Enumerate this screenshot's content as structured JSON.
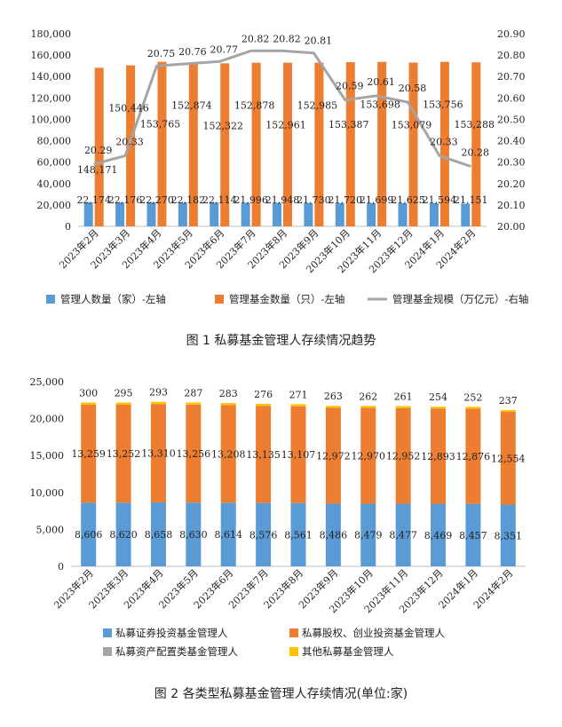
{
  "figure1": {
    "caption": "图 1 私募基金管理人存续情况趋势",
    "chart_data": {
      "type": "bar",
      "categories": [
        "2023年2月",
        "2023年3月",
        "2023年4月",
        "2023年5月",
        "2023年6月",
        "2023年7月",
        "2023年8月",
        "2023年9月",
        "2023年10月",
        "2023年11月",
        "2023年12月",
        "2024年1月",
        "2024年2月"
      ],
      "series": [
        {
          "name": "管理人数量（家）-左轴",
          "type": "bar",
          "axis": "left",
          "color": "#5B9BD5",
          "values": [
            22174,
            22176,
            22270,
            22182,
            22114,
            21996,
            21948,
            21730,
            21720,
            21699,
            21625,
            21594,
            21151
          ],
          "labels": [
            "22,174",
            "22,176",
            "22,270",
            "22,182",
            "22,114",
            "21,996",
            "21,948",
            "21,730",
            "21,720",
            "21,699",
            "21,625",
            "21,594",
            "21,151"
          ]
        },
        {
          "name": "管理基金数量（只）-左轴",
          "type": "bar",
          "axis": "left",
          "color": "#ED7D31",
          "values": [
            148171,
            150446,
            153765,
            152874,
            152322,
            152878,
            152961,
            152985,
            153387,
            153698,
            153079,
            153756,
            153288
          ],
          "labels": [
            "148,171",
            "150,446",
            "153,765",
            "152,874",
            "152,322",
            "152,878",
            "152,961",
            "152,985",
            "153,387",
            "153,698",
            "153,079",
            "153,756",
            "153,288"
          ]
        },
        {
          "name": "管理基金规模（万亿元）-右轴",
          "type": "line",
          "axis": "right",
          "color": "#A5A5A5",
          "values": [
            20.29,
            20.33,
            20.75,
            20.76,
            20.77,
            20.82,
            20.82,
            20.81,
            20.59,
            20.61,
            20.58,
            20.33,
            20.28
          ],
          "labels": [
            "20.29",
            "20.33",
            "20.75",
            "20.76",
            "20.77",
            "20.82",
            "20.82",
            "20.81",
            "20.59",
            "20.61",
            "20.58",
            "20.33",
            "20.28"
          ]
        }
      ],
      "yleft": {
        "min": 0,
        "max": 180000,
        "step": 20000,
        "ticks": [
          "0",
          "20,000",
          "40,000",
          "60,000",
          "80,000",
          "100,000",
          "120,000",
          "140,000",
          "160,000",
          "180,000"
        ]
      },
      "yright": {
        "min": 20.0,
        "max": 20.9,
        "step": 0.1,
        "ticks": [
          "20.00",
          "20.10",
          "20.20",
          "20.30",
          "20.40",
          "20.50",
          "20.60",
          "20.70",
          "20.80",
          "20.90"
        ]
      },
      "legend_position": "bottom",
      "grid": false
    }
  },
  "figure2": {
    "caption": "图 2 各类型私募基金管理人存续情况(单位:家)",
    "chart_data": {
      "type": "bar",
      "stacked": true,
      "categories": [
        "2023年2月",
        "2023年3月",
        "2023年4月",
        "2023年5月",
        "2023年6月",
        "2023年7月",
        "2023年8月",
        "2023年9月",
        "2023年10月",
        "2023年11月",
        "2023年12月",
        "2024年1月",
        "2024年2月"
      ],
      "series": [
        {
          "name": "私募证券投资基金管理人",
          "color": "#5B9BD5",
          "values": [
            8606,
            8620,
            8658,
            8630,
            8614,
            8576,
            8561,
            8486,
            8479,
            8477,
            8469,
            8457,
            8351
          ],
          "labels": [
            "8,606",
            "8,620",
            "8,658",
            "8,630",
            "8,614",
            "8,576",
            "8,561",
            "8,486",
            "8,479",
            "8,477",
            "8,469",
            "8,457",
            "8,351"
          ]
        },
        {
          "name": "私募股权、创业投资基金管理人",
          "color": "#ED7D31",
          "values": [
            13259,
            13252,
            13310,
            13256,
            13208,
            13135,
            13107,
            12972,
            12970,
            12952,
            12893,
            12876,
            12554
          ],
          "labels": [
            "13,259",
            "13,252",
            "13,310",
            "13,256",
            "13,208",
            "13,135",
            "13,107",
            "12,972",
            "12,970",
            "12,952",
            "12,893",
            "12,876",
            "12,554"
          ]
        },
        {
          "name": "私募资产配置类基金管理人",
          "color": "#A5A5A5",
          "values": [
            9,
            9,
            9,
            9,
            9,
            9,
            9,
            9,
            9,
            9,
            9,
            9,
            9
          ]
        },
        {
          "name": "其他私募基金管理人",
          "color": "#FFC000",
          "values": [
            300,
            295,
            293,
            287,
            283,
            276,
            271,
            263,
            262,
            261,
            254,
            252,
            237
          ],
          "labels": [
            "300",
            "295",
            "293",
            "287",
            "283",
            "276",
            "271",
            "263",
            "262",
            "261",
            "254",
            "252",
            "237"
          ]
        }
      ],
      "yaxis": {
        "min": 0,
        "max": 25000,
        "step": 5000,
        "ticks": [
          "0",
          "5,000",
          "10,000",
          "15,000",
          "20,000",
          "25,000"
        ]
      },
      "legend_position": "bottom",
      "grid": false
    }
  }
}
